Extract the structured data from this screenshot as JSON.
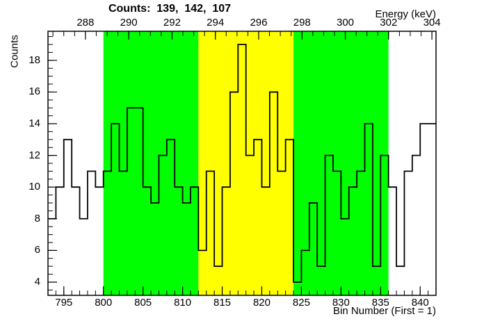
{
  "title": "Counts:  139,  142,  107",
  "chart_data": {
    "type": "bar",
    "subtype": "step-histogram",
    "title": "Counts:  139,  142,  107",
    "histogram": {
      "first_bin": 793,
      "bin_width": 1,
      "values": [
        8,
        10,
        13,
        10,
        8,
        11,
        10,
        11,
        14,
        11,
        15,
        15,
        10,
        9,
        12,
        13,
        10,
        9,
        10,
        6,
        11,
        5,
        10,
        16,
        19,
        12,
        13,
        10,
        16,
        11,
        13,
        4,
        6,
        9,
        5,
        12,
        11,
        8,
        10,
        11,
        14,
        5,
        12,
        10,
        5,
        11,
        12,
        14,
        14
      ]
    },
    "x_axis": {
      "label": "Bin Number (First = 1)",
      "min": 793,
      "max": 842,
      "major_ticks": [
        795,
        800,
        805,
        810,
        815,
        820,
        825,
        830,
        835,
        840
      ],
      "minor_step": 1
    },
    "y_axis": {
      "label": "Counts",
      "min": 3.165,
      "max": 19.835,
      "major_ticks": [
        4,
        6,
        8,
        10,
        12,
        14,
        16,
        18
      ],
      "minor_step": 0.5
    },
    "top_axis": {
      "label": "Energy (keV)",
      "min": 286.27,
      "max": 304.19,
      "major_ticks": [
        288,
        290,
        292,
        294,
        296,
        298,
        300,
        302,
        304
      ],
      "minor_step": 0.5
    },
    "regions": [
      {
        "from_bin": 800,
        "to_bin": 812,
        "color": "#00ff00",
        "counts": 139
      },
      {
        "from_bin": 812,
        "to_bin": 824,
        "color": "#ffff00",
        "counts": 142
      },
      {
        "from_bin": 824,
        "to_bin": 836,
        "color": "#00ff00",
        "counts": 107
      }
    ],
    "line_color": "#000000",
    "frame_color": "#000000",
    "background_color": "#ffffff",
    "grid": false,
    "legend": false
  }
}
